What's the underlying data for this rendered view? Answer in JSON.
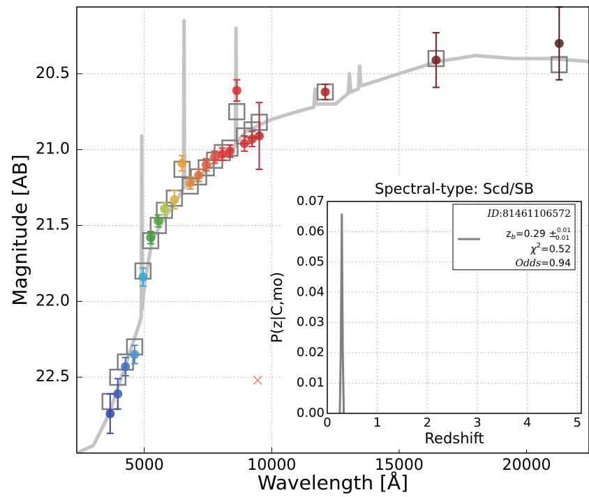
{
  "chart_data": [
    {
      "type": "scatter",
      "xlabel": "Wavelength [Å]",
      "ylabel": "Magnitude [AB]",
      "xlim": [
        2350,
        22450
      ],
      "ylim": [
        23.0,
        20.06
      ],
      "xticks": [
        5000,
        10000,
        15000,
        20000
      ],
      "yticks": [
        20.5,
        {
          "value": 21,
          "label": "21.0"
        },
        21.5,
        {
          "value": 22,
          "label": "22.0"
        },
        22.5
      ],
      "grid": true,
      "x": [
        3660,
        3960,
        4260,
        4620,
        4950,
        5250,
        5550,
        5790,
        6180,
        6480,
        6800,
        7130,
        7430,
        7760,
        8060,
        8360,
        8630,
        8930,
        9230,
        9510,
        12100,
        16450,
        21280
      ],
      "values": [
        22.74,
        22.61,
        22.43,
        22.35,
        21.84,
        21.58,
        21.47,
        21.39,
        21.33,
        21.09,
        21.22,
        21.17,
        21.1,
        21.05,
        21.03,
        21.01,
        20.61,
        20.96,
        20.93,
        20.91,
        20.62,
        20.41,
        20.3
      ],
      "errors": [
        0.13,
        0.1,
        0.06,
        0.06,
        0.06,
        0.04,
        0.04,
        0.04,
        0.06,
        0.05,
        0.04,
        0.04,
        0.04,
        0.04,
        0.04,
        0.04,
        0.07,
        0.05,
        0.05,
        0.22,
        0.05,
        0.18,
        0.24
      ],
      "colors": [
        "#3848a8",
        "#3c58b8",
        "#3f6cc4",
        "#4a90d0",
        "#38a8d8",
        "#3c9a3c",
        "#4aa03c",
        "#a8c040",
        "#d8b040",
        "#e8a030",
        "#e08838",
        "#e07038",
        "#e05838",
        "#e04838",
        "#e03434",
        "#d83030",
        "#e02c2c",
        "#d03030",
        "#c83030",
        "#c02c2c",
        "#a82424",
        "#782020",
        "#502020"
      ],
      "model_values": [
        22.66,
        22.5,
        22.4,
        22.3,
        21.8,
        21.6,
        21.5,
        21.4,
        21.32,
        21.13,
        21.24,
        21.18,
        21.12,
        21.07,
        21.02,
        20.99,
        20.75,
        20.91,
        20.87,
        20.82,
        20.62,
        20.4,
        20.44
      ],
      "spectrum_x": [
        2350,
        3000,
        3600,
        4000,
        4400,
        4800,
        4880,
        4900,
        4920,
        5000,
        5300,
        5800,
        6400,
        6540,
        6560,
        6580,
        7000,
        8000,
        8580,
        8600,
        8620,
        9000,
        10000,
        11000,
        11650,
        11700,
        11750,
        12500,
        13000,
        13050,
        13100,
        13400,
        13450,
        13500,
        15000,
        16500,
        18000,
        19500,
        21000,
        22450
      ],
      "spectrum_y": [
        23.0,
        22.95,
        22.75,
        22.55,
        22.35,
        22.15,
        22.1,
        20.91,
        22.05,
        21.9,
        21.6,
        21.45,
        21.3,
        21.25,
        20.15,
        21.25,
        21.2,
        21.05,
        20.98,
        20.2,
        20.95,
        20.88,
        20.8,
        20.75,
        20.72,
        20.6,
        20.7,
        20.7,
        20.63,
        20.5,
        20.62,
        20.6,
        20.45,
        20.58,
        20.5,
        20.42,
        20.38,
        20.4,
        20.4,
        20.42
      ],
      "outlier": {
        "x": 9450,
        "y": 22.52,
        "color": "#e87878"
      }
    },
    {
      "type": "line",
      "title": "Spectral-type: Scd/SB",
      "xlabel": "Redshift",
      "ylabel": "P(z|C,mo)",
      "xlim": [
        0,
        5.08
      ],
      "ylim": [
        0,
        0.07
      ],
      "xticks": [
        0,
        1,
        2,
        3,
        4,
        5
      ],
      "yticks": [
        {
          "value": 0,
          "label": "0.00"
        },
        0.01,
        0.02,
        0.03,
        0.04,
        0.05,
        0.06,
        0.07
      ],
      "x": [
        0.25,
        0.27,
        0.29,
        0.31,
        0.33
      ],
      "values": [
        0,
        0.02,
        0.066,
        0.02,
        0
      ],
      "color": "#808080",
      "legend": {
        "id_name": "ID",
        "id_value": ":81461106572",
        "zb": "z",
        "zb_sub": "b",
        "zb_value": "=0.29 ±",
        "zb_plus": "0.01",
        "zb_minus": "0.01",
        "chi": "χ",
        "chi_sup": "2",
        "chi_value": "=0.52",
        "odds_name": "Odds",
        "odds_value": "=0.94"
      }
    }
  ]
}
